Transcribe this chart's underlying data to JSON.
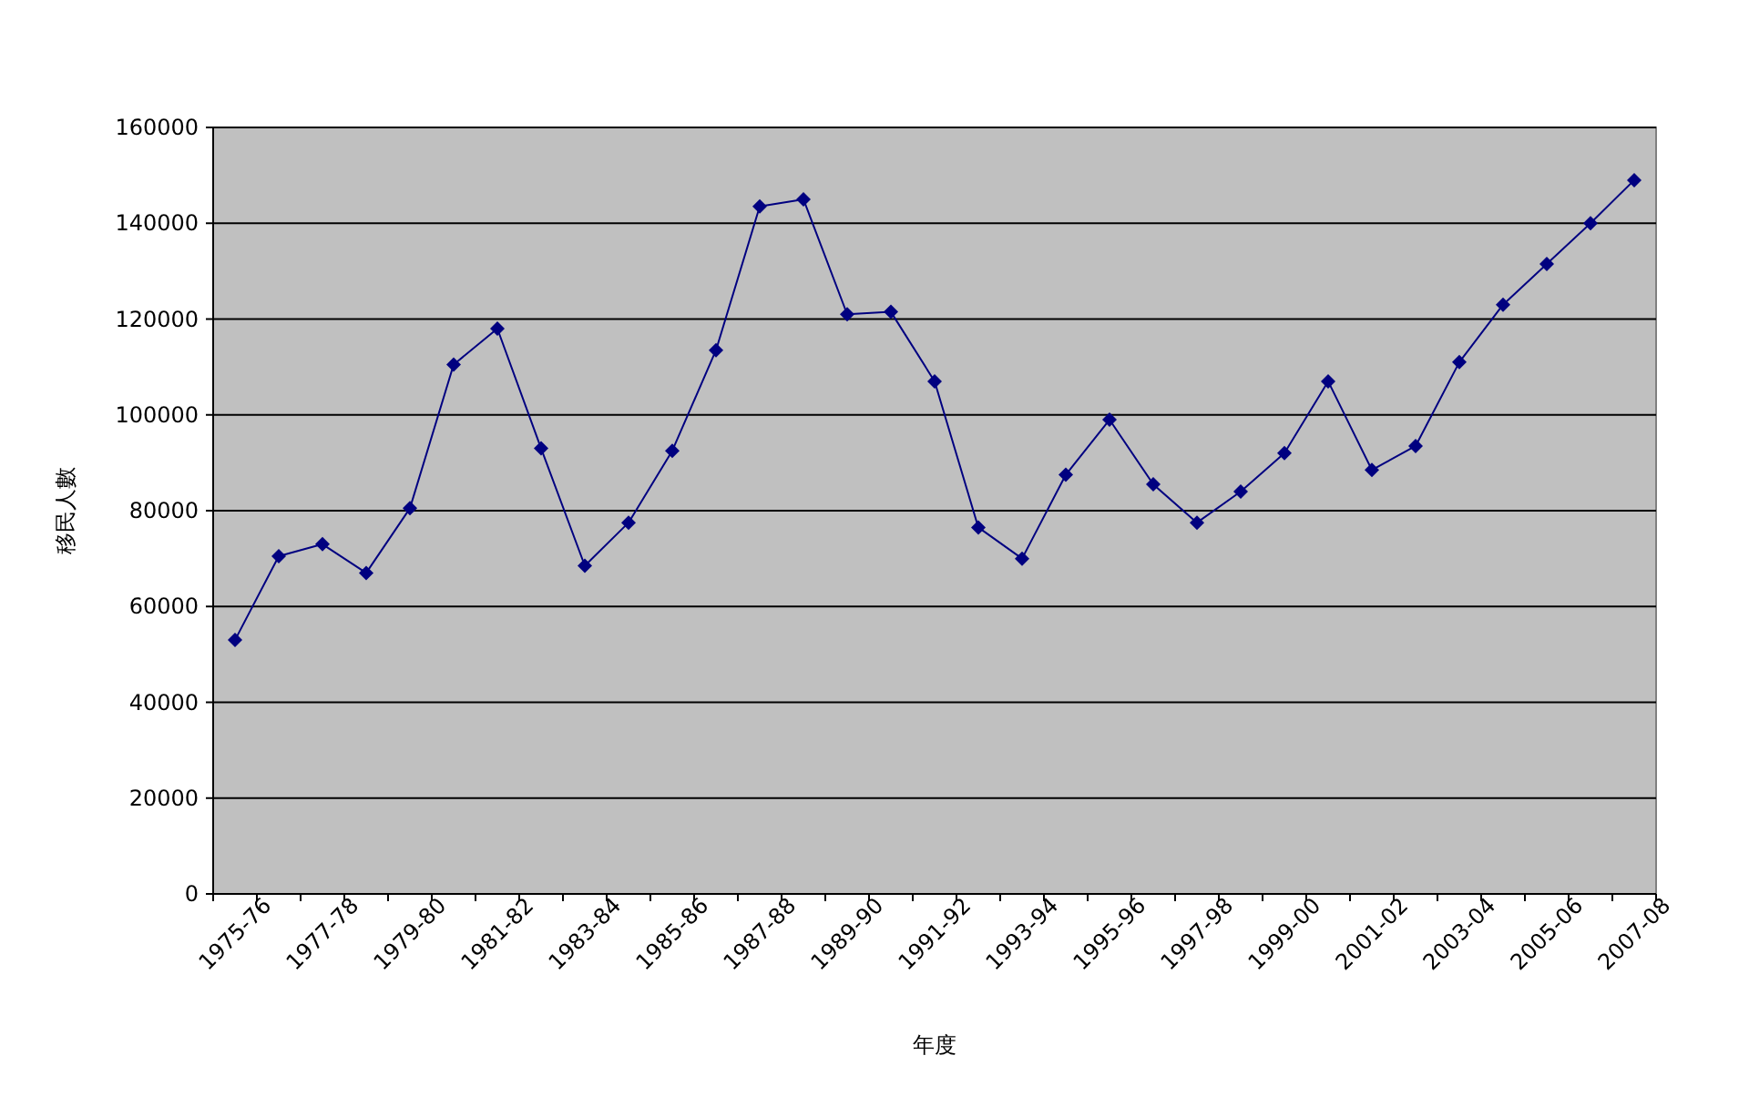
{
  "chart_data": {
    "type": "line",
    "xlabel": "年度",
    "ylabel": "移民人數",
    "categories": [
      "1975-76",
      null,
      "1977-78",
      null,
      "1979-80",
      null,
      "1981-82",
      null,
      "1983-84",
      null,
      "1985-86",
      null,
      "1987-88",
      null,
      "1989-90",
      null,
      "1991-92",
      null,
      "1993-94",
      null,
      "1995-96",
      null,
      "1997-98",
      null,
      "1999-00",
      null,
      "2001-02",
      null,
      "2003-04",
      null,
      "2005-06",
      null,
      "2007-08"
    ],
    "values": [
      53000,
      70500,
      73000,
      67000,
      80500,
      110500,
      118000,
      93000,
      68500,
      77500,
      92500,
      113500,
      143500,
      145000,
      121000,
      121500,
      107000,
      76500,
      70000,
      87500,
      99000,
      85500,
      77500,
      84000,
      92000,
      107000,
      88500,
      93500,
      111000,
      123000,
      131500,
      140000,
      149000
    ],
    "color": "#000080",
    "ylim": [
      0,
      160000
    ],
    "yticks": [
      0,
      20000,
      40000,
      60000,
      80000,
      100000,
      120000,
      140000,
      160000
    ],
    "grid": "y",
    "marker": "diamond",
    "legend": false
  }
}
